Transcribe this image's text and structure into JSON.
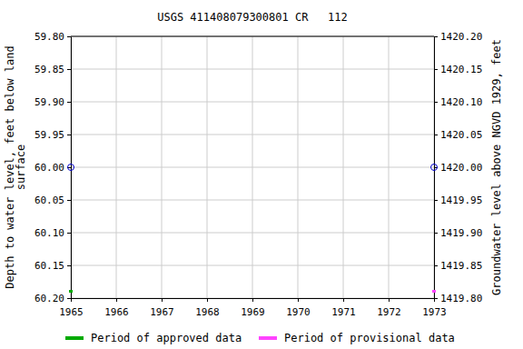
{
  "chart_data": {
    "type": "scatter",
    "title": "USGS 411408079300801 CR   112",
    "ylabel": [
      "Depth to water level, feet below land",
      "surface"
    ],
    "y2label": "Groundwater level above NGVD 1929, feet",
    "xlim": [
      1965,
      1973
    ],
    "xticks": [
      1965,
      1966,
      1967,
      1968,
      1969,
      1970,
      1971,
      1972,
      1973
    ],
    "ylim": [
      60.2,
      59.8
    ],
    "yticks": [
      {
        "value": 59.8,
        "label": "59.80"
      },
      {
        "value": 59.85,
        "label": "59.85"
      },
      {
        "value": 59.9,
        "label": "59.90"
      },
      {
        "value": 59.95,
        "label": "59.95"
      },
      {
        "value": 60.0,
        "label": "60.00"
      },
      {
        "value": 60.05,
        "label": "60.05"
      },
      {
        "value": 60.1,
        "label": "60.10"
      },
      {
        "value": 60.15,
        "label": "60.15"
      },
      {
        "value": 60.2,
        "label": "60.20"
      }
    ],
    "y2lim": [
      1419.8,
      1420.2
    ],
    "y2ticks": [
      {
        "value": 1420.2,
        "label": "1420.20"
      },
      {
        "value": 1420.15,
        "label": "1420.15"
      },
      {
        "value": 1420.1,
        "label": "1420.10"
      },
      {
        "value": 1420.05,
        "label": "1420.05"
      },
      {
        "value": 1420.0,
        "label": "1420.00"
      },
      {
        "value": 1419.95,
        "label": "1419.95"
      },
      {
        "value": 1419.9,
        "label": "1419.90"
      },
      {
        "value": 1419.85,
        "label": "1419.85"
      },
      {
        "value": 1419.8,
        "label": "1419.80"
      }
    ],
    "grid": true,
    "legend": "bottom",
    "series": [
      {
        "color": "#0000cc",
        "marker": "open-circle",
        "x": [
          1965,
          1973
        ],
        "values": [
          60.0,
          60.0
        ]
      },
      {
        "name": "Period of approved data",
        "type": "period",
        "color": "#00aa00",
        "x": [
          1965
        ]
      },
      {
        "name": "Period of provisional data",
        "type": "period",
        "color": "#ff44ff",
        "x": [
          1973
        ]
      }
    ]
  }
}
